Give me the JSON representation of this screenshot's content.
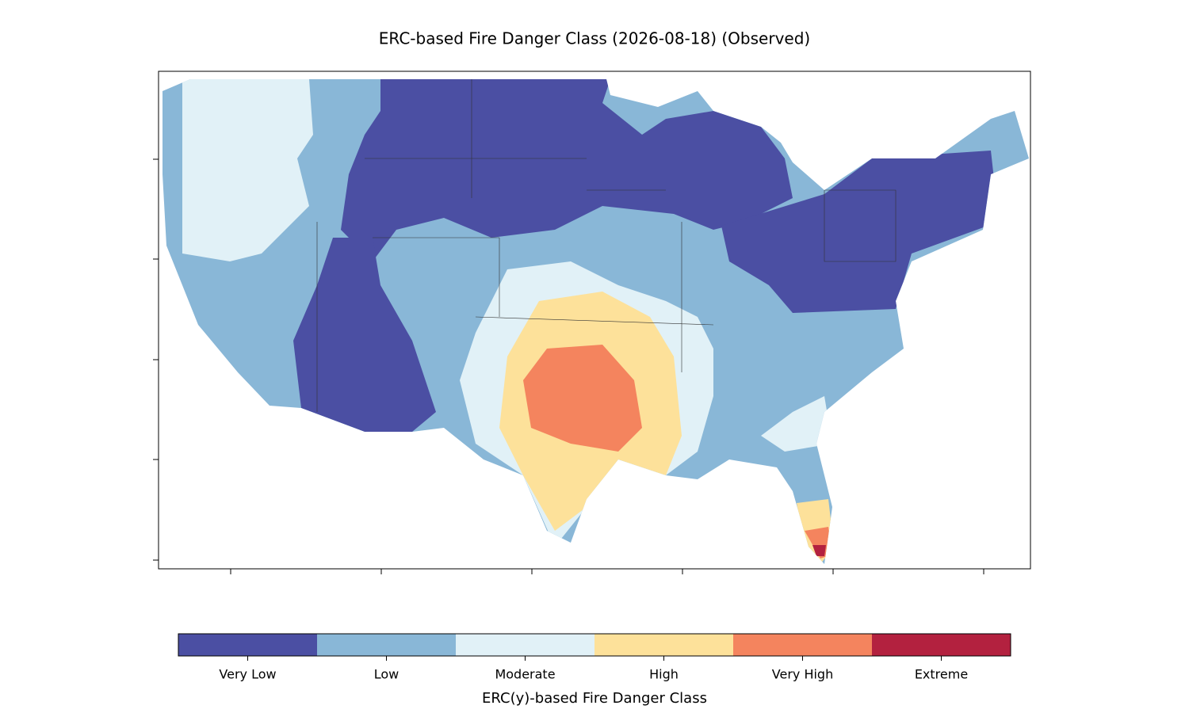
{
  "title": "ERC-based Fire Danger Class (2026-08-18) (Observed)",
  "colorbar": {
    "label": "ERC(y)-based Fire Danger Class",
    "classes": [
      {
        "name": "Very Low",
        "color": "#4b4fa3"
      },
      {
        "name": "Low",
        "color": "#89b7d7"
      },
      {
        "name": "Moderate",
        "color": "#e1f1f7"
      },
      {
        "name": "High",
        "color": "#fde19a"
      },
      {
        "name": "Very High",
        "color": "#f4845e"
      },
      {
        "name": "Extreme",
        "color": "#b3213f"
      }
    ]
  }
}
